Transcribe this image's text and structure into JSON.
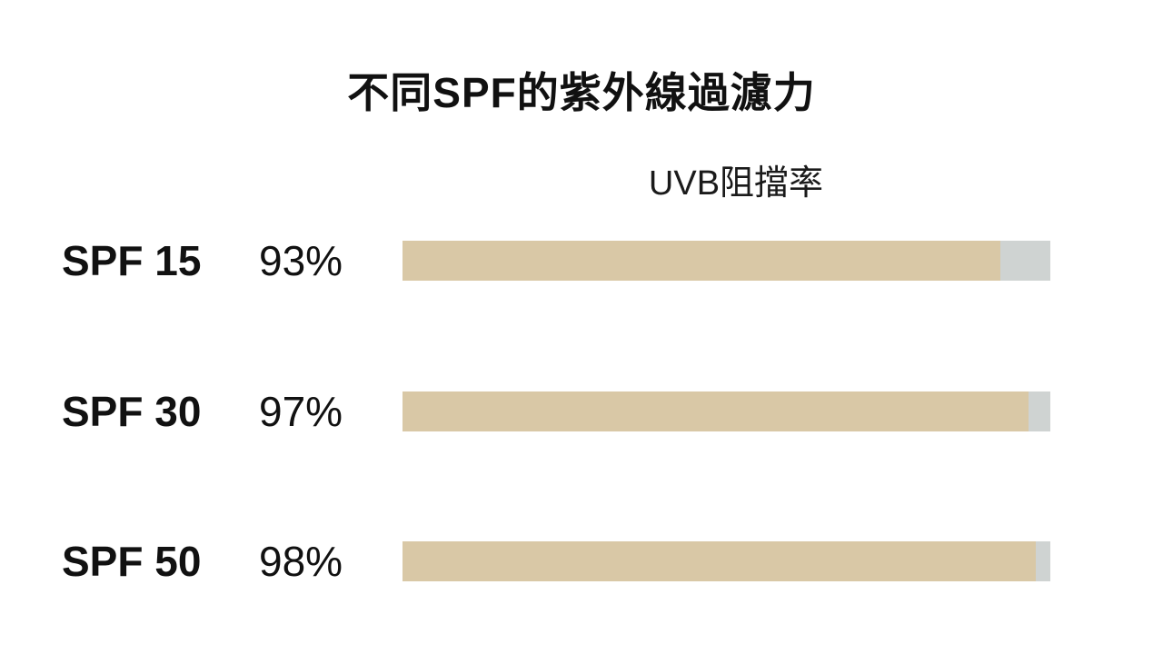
{
  "title": "不同SPF的紫外線過濾力",
  "colors": {
    "fill": "#d9c8a6",
    "track": "#cfd3d2",
    "text": "#111111"
  },
  "chart_data": {
    "type": "bar",
    "orientation": "horizontal",
    "title": "不同SPF的紫外線過濾力",
    "column_header": "UVB阻擋率",
    "categories": [
      "SPF 15",
      "SPF 30",
      "SPF 50"
    ],
    "values": [
      93,
      97,
      98
    ],
    "value_labels": [
      "93%",
      "97%",
      "98%"
    ],
    "xlim": [
      10,
      100
    ],
    "grid": false,
    "legend": "none"
  }
}
